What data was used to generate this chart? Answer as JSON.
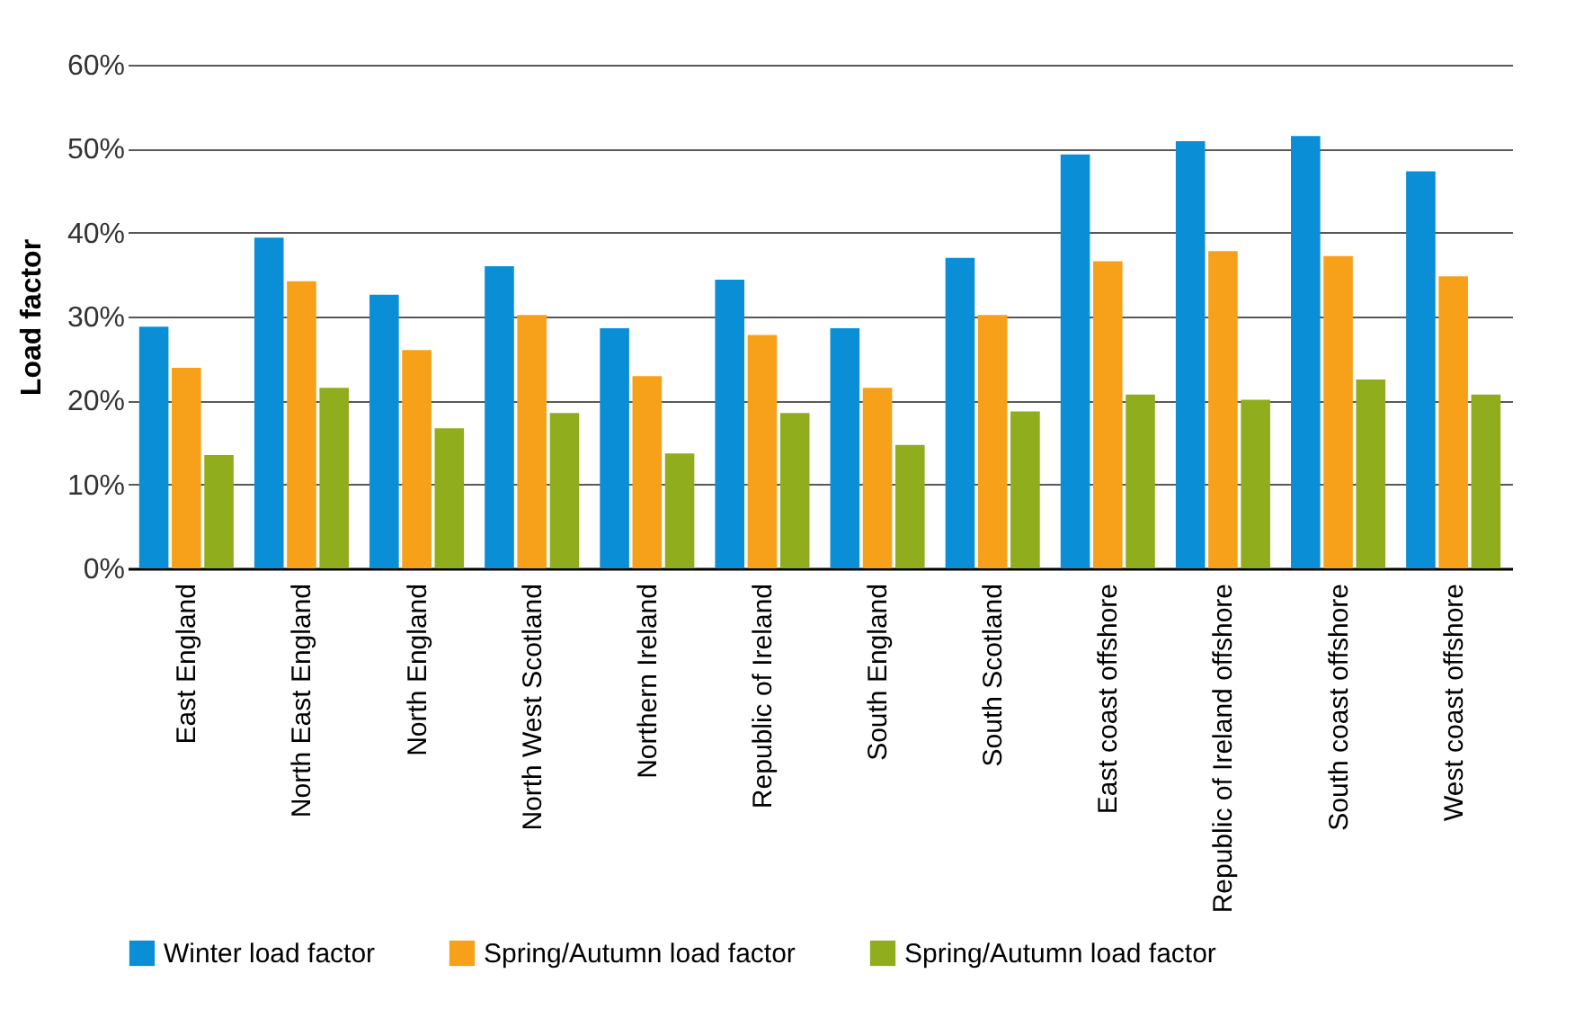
{
  "chart_data": {
    "type": "bar",
    "ylabel": "Load factor",
    "categories": [
      "East England",
      "North East England",
      "North England",
      "North West Scotland",
      "Northern Ireland",
      "Republic of Ireland",
      "South England",
      "South Scotland",
      "East coast offshore",
      "Republic of Ireland offshore",
      "South coast offshore",
      "West coast offshore"
    ],
    "series": [
      {
        "name": "Winter load factor",
        "color": "#0a8fd6",
        "values": [
          28.8,
          39.4,
          32.6,
          36.0,
          28.6,
          34.4,
          28.6,
          37.0,
          49.3,
          50.9,
          51.5,
          47.3
        ]
      },
      {
        "name": "Spring/Autumn load factor",
        "color": "#f7a11a",
        "values": [
          23.9,
          34.2,
          26.0,
          30.2,
          22.9,
          27.8,
          21.5,
          30.2,
          36.6,
          37.8,
          37.2,
          34.8
        ]
      },
      {
        "name": "Spring/Autumn load factor",
        "color": "#8fad1c",
        "values": [
          13.5,
          21.5,
          16.7,
          18.5,
          13.7,
          18.5,
          14.7,
          18.7,
          20.7,
          20.1,
          22.5,
          20.7
        ]
      }
    ],
    "ylim": [
      0,
      60
    ],
    "yticks": [
      {
        "value": 0,
        "label": "0%"
      },
      {
        "value": 10,
        "label": "10%"
      },
      {
        "value": 20,
        "label": "20%"
      },
      {
        "value": 30,
        "label": "30%"
      },
      {
        "value": 40,
        "label": "40%"
      },
      {
        "value": 50,
        "label": "50%"
      },
      {
        "value": 60,
        "label": "60%"
      }
    ],
    "grid": "y",
    "legend": "bottom left"
  }
}
